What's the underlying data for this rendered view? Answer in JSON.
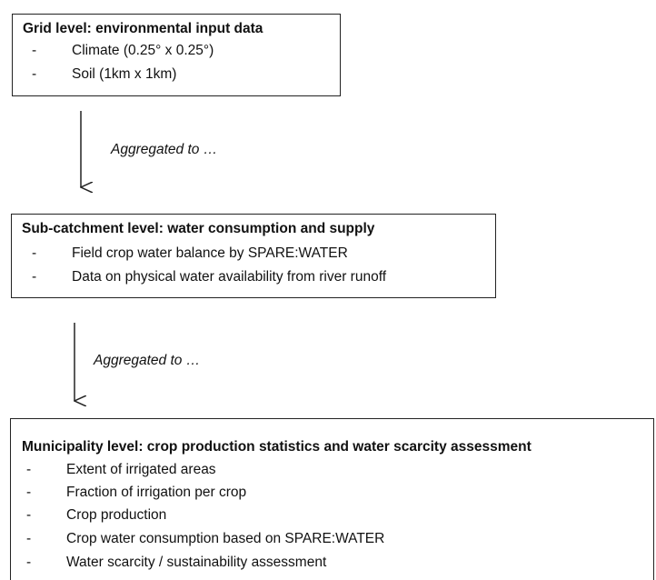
{
  "boxes": [
    {
      "title": "Grid level: environmental input data",
      "items": [
        "Climate (0.25° x 0.25°)",
        "Soil (1km x 1km)"
      ]
    },
    {
      "title": "Sub-catchment level: water consumption and supply",
      "items": [
        "Field crop water balance by SPARE:WATER",
        "Data on physical water availability from river runoff"
      ]
    },
    {
      "title": "Municipality level: crop production statistics and water scarcity assessment",
      "items": [
        "Extent of irrigated areas",
        "Fraction of irrigation per crop",
        "Crop production",
        "Crop water consumption based on SPARE:WATER",
        "Water scarcity / sustainability assessment"
      ]
    }
  ],
  "arrows": [
    {
      "label": "Aggregated to …"
    },
    {
      "label": "Aggregated to …"
    }
  ]
}
